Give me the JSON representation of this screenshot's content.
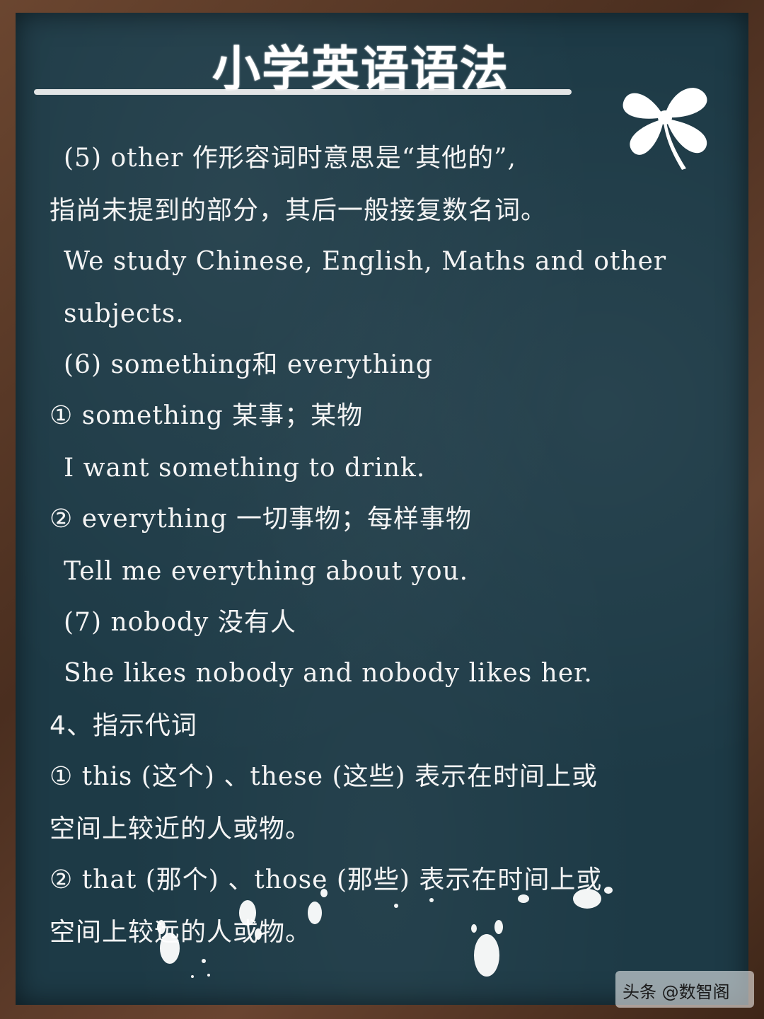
{
  "title": "小学英语语法",
  "lines": [
    "(5) other 作形容词时意思是“其他的”,",
    "指尚未提到的部分，其后一般接复数名词。",
    "We study Chinese, English, Maths and other",
    "subjects.",
    "(6) something和 everything",
    "① something 某事；某物",
    "I want something to drink.",
    "② everything 一切事物；每样事物",
    "Tell me everything about you.",
    "(7) nobody 没有人",
    "She likes nobody and nobody likes her.",
    "4、指示代词",
    "① this (这个) 、these (这些) 表示在时间上或",
    "空间上较近的人或物。",
    "② that (那个) 、those (那些) 表示在时间上或",
    "空间上较远的人或物。"
  ],
  "watermark": "头条 @数智阁",
  "colors": {
    "board": "#1d3a46",
    "chalk": "#f4f4f4",
    "frame": "#5a3a28"
  },
  "icons": {
    "clover": "four-leaf-clover-icon",
    "splash": "chalk-splash-decoration"
  }
}
